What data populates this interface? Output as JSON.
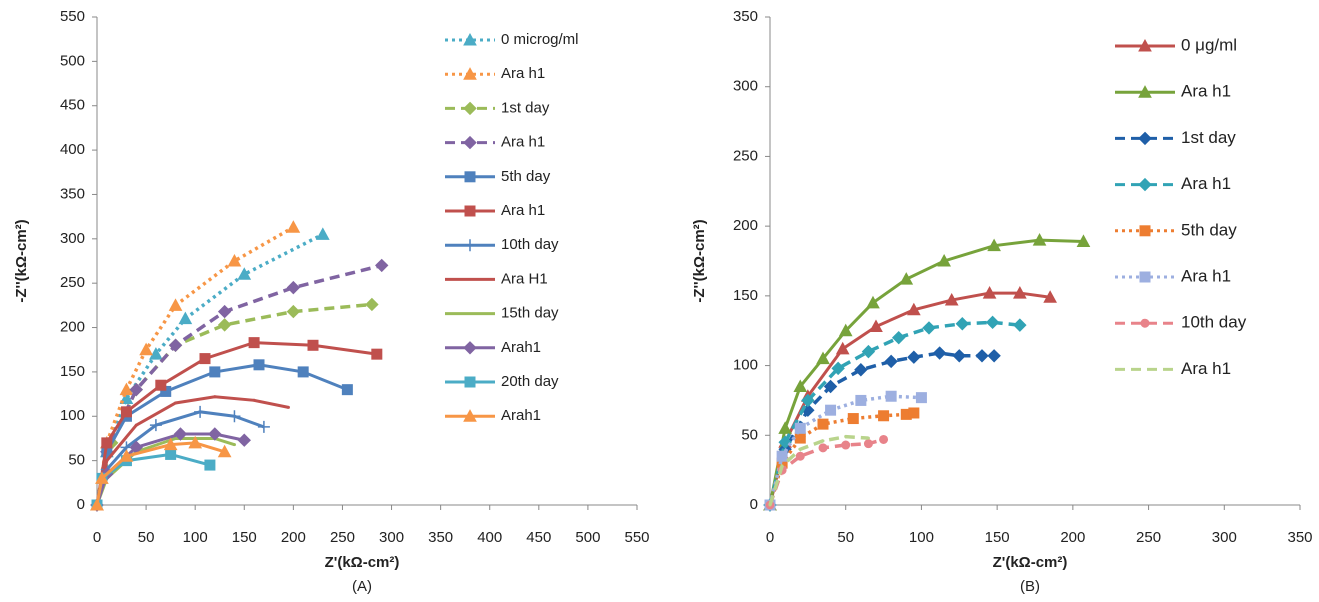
{
  "chart_data": [
    {
      "type": "line",
      "xlabel": "Z'(kΩ-cm²)",
      "ylabel": "-Z''(kΩ-cm²)",
      "caption": "(A)",
      "xlim": [
        0,
        550
      ],
      "ylim": [
        0,
        550
      ],
      "xticks": [
        0,
        50,
        100,
        150,
        200,
        250,
        300,
        350,
        400,
        450,
        500,
        550
      ],
      "yticks": [
        0,
        50,
        100,
        150,
        200,
        250,
        300,
        350,
        400,
        450,
        500,
        550
      ],
      "legend": "upper right",
      "series": [
        {
          "name": "0 microg/ml",
          "color": "#4bacc6",
          "dash": "dotted",
          "marker": "triangle",
          "x": [
            0,
            10,
            30,
            60,
            90,
            150,
            230
          ],
          "values": [
            0,
            60,
            120,
            170,
            210,
            260,
            305
          ]
        },
        {
          "name": "Ara h1",
          "color": "#f79646",
          "dash": "dotted",
          "marker": "triangle",
          "x": [
            0,
            10,
            30,
            50,
            80,
            140,
            200
          ],
          "values": [
            0,
            70,
            130,
            175,
            225,
            275,
            313
          ]
        },
        {
          "name": "1st day",
          "color": "#9bbb59",
          "dash": "dashed",
          "marker": "diamond",
          "x": [
            0,
            15,
            40,
            80,
            130,
            200,
            280
          ],
          "values": [
            0,
            70,
            130,
            180,
            203,
            218,
            226
          ]
        },
        {
          "name": "Ara h1",
          "color": "#8064a2",
          "dash": "dashed",
          "marker": "diamond",
          "x": [
            0,
            10,
            40,
            80,
            130,
            200,
            290
          ],
          "values": [
            0,
            60,
            130,
            180,
            218,
            245,
            270
          ]
        },
        {
          "name": "5th day",
          "color": "#4f81bd",
          "dash": "solid",
          "marker": "square",
          "x": [
            0,
            10,
            30,
            70,
            120,
            165,
            210,
            255
          ],
          "values": [
            0,
            60,
            100,
            128,
            150,
            158,
            150,
            130
          ]
        },
        {
          "name": "Ara h1",
          "color": "#c0504d",
          "dash": "solid",
          "marker": "square",
          "x": [
            0,
            10,
            30,
            65,
            110,
            160,
            220,
            285
          ],
          "values": [
            0,
            70,
            105,
            135,
            165,
            183,
            180,
            170
          ]
        },
        {
          "name": "10th day",
          "color": "#4f81bd",
          "dash": "solid",
          "marker": "plus",
          "x": [
            0,
            10,
            30,
            60,
            105,
            140,
            170
          ],
          "values": [
            0,
            40,
            65,
            90,
            105,
            100,
            88
          ]
        },
        {
          "name": "Ara H1",
          "color": "#c0504d",
          "dash": "solid",
          "marker": "none",
          "x": [
            0,
            10,
            40,
            80,
            120,
            160,
            195
          ],
          "values": [
            0,
            50,
            90,
            115,
            122,
            118,
            110
          ]
        },
        {
          "name": "15th day",
          "color": "#9bbb59",
          "dash": "solid",
          "marker": "none",
          "x": [
            0,
            10,
            40,
            80,
            120,
            140
          ],
          "values": [
            0,
            30,
            60,
            75,
            75,
            68
          ]
        },
        {
          "name": "Arah1",
          "color": "#8064a2",
          "dash": "solid",
          "marker": "diamond",
          "x": [
            0,
            10,
            40,
            85,
            120,
            150
          ],
          "values": [
            0,
            35,
            65,
            80,
            80,
            73
          ]
        },
        {
          "name": "20th day",
          "color": "#4bacc6",
          "dash": "solid",
          "marker": "square",
          "x": [
            0,
            5,
            30,
            75,
            115
          ],
          "values": [
            0,
            30,
            50,
            57,
            45
          ]
        },
        {
          "name": "Arah1",
          "color": "#f79646",
          "dash": "solid",
          "marker": "triangle",
          "x": [
            0,
            5,
            30,
            75,
            100,
            130
          ],
          "values": [
            0,
            30,
            55,
            68,
            70,
            60
          ]
        }
      ]
    },
    {
      "type": "line",
      "xlabel": "Z'(kΩ-cm²)",
      "ylabel": "-Z''(kΩ-cm²)",
      "caption": "(B)",
      "xlim": [
        0,
        350
      ],
      "ylim": [
        0,
        350
      ],
      "xticks": [
        0,
        50,
        100,
        150,
        200,
        250,
        300,
        350
      ],
      "yticks": [
        0,
        50,
        100,
        150,
        200,
        250,
        300,
        350
      ],
      "legend": "upper right",
      "series": [
        {
          "name": "0 μg/ml",
          "color": "#c0504d",
          "dash": "solid",
          "marker": "triangle",
          "x": [
            0,
            10,
            25,
            48,
            70,
            95,
            120,
            145,
            165,
            185
          ],
          "values": [
            0,
            45,
            78,
            112,
            128,
            140,
            147,
            152,
            152,
            149
          ]
        },
        {
          "name": "Ara h1",
          "color": "#77a33b",
          "dash": "solid",
          "marker": "triangle",
          "x": [
            0,
            10,
            20,
            35,
            50,
            68,
            90,
            115,
            148,
            178,
            207
          ],
          "values": [
            0,
            55,
            85,
            105,
            125,
            145,
            162,
            175,
            186,
            190,
            189
          ]
        },
        {
          "name": "1st day",
          "color": "#1f5fa8",
          "dash": "dashed",
          "marker": "diamond",
          "x": [
            0,
            10,
            25,
            40,
            60,
            80,
            95,
            112,
            125,
            140,
            148
          ],
          "values": [
            0,
            40,
            68,
            85,
            97,
            103,
            106,
            109,
            107,
            107,
            107
          ]
        },
        {
          "name": "Ara h1",
          "color": "#31a3b5",
          "dash": "dashed",
          "marker": "diamond",
          "x": [
            0,
            10,
            25,
            45,
            65,
            85,
            105,
            127,
            147,
            165
          ],
          "values": [
            0,
            45,
            75,
            98,
            110,
            120,
            127,
            130,
            131,
            129
          ]
        },
        {
          "name": "5th day",
          "color": "#ed7d31",
          "dash": "dotted",
          "marker": "square",
          "x": [
            0,
            8,
            20,
            35,
            55,
            75,
            90,
            95
          ],
          "values": [
            0,
            30,
            48,
            58,
            62,
            64,
            65,
            66
          ]
        },
        {
          "name": "Ara h1",
          "color": "#9dafe0",
          "dash": "dotted",
          "marker": "square",
          "x": [
            0,
            8,
            20,
            40,
            60,
            80,
            100
          ],
          "values": [
            0,
            35,
            55,
            68,
            75,
            78,
            77
          ]
        },
        {
          "name": "10th day",
          "color": "#e8838a",
          "dash": "dashed",
          "marker": "circle",
          "x": [
            0,
            8,
            20,
            35,
            50,
            65,
            75
          ],
          "values": [
            0,
            25,
            35,
            41,
            43,
            44,
            47
          ]
        },
        {
          "name": "Ara h1",
          "color": "#b9d48c",
          "dash": "dashed",
          "marker": "none",
          "x": [
            0,
            8,
            20,
            35,
            50,
            65
          ],
          "values": [
            0,
            28,
            40,
            46,
            49,
            48
          ]
        }
      ]
    }
  ]
}
